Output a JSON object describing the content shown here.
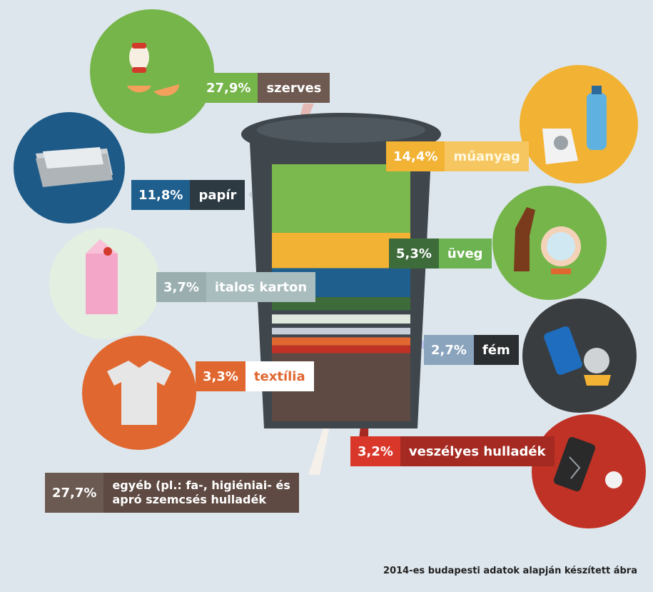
{
  "chart_data": {
    "type": "bar",
    "categories": [
      "szerves",
      "műanyag",
      "papír",
      "üveg",
      "italos karton",
      "fém",
      "textília",
      "veszélyes hulladék",
      "egyéb (pl.: fa-, higiéniai- és\napró szemcsés hulladék"
    ],
    "values": [
      27.9,
      14.4,
      11.8,
      5.3,
      3.7,
      2.7,
      3.3,
      3.2,
      27.7
    ],
    "value_labels": [
      "27,9%",
      "14,4%",
      "11,8%",
      "5,3%",
      "3,7%",
      "2,7%",
      "3,3%",
      "3,2%",
      "27,7%"
    ],
    "colors": [
      "#7bb84d",
      "#f2b233",
      "#1f5f8e",
      "#3d6b3a",
      "#dfe6dc",
      "#c8cfd8",
      "#e0672f",
      "#c03225",
      "#5e4a42"
    ],
    "note": "2014-es budapesti adatok alapján készített ábra"
  },
  "icons": [
    "apple-core-eggshell-icon",
    "newspaper-icon",
    "milk-carton-icon",
    "shirt-icon",
    "plastic-bag-bottle-icon",
    "glass-bottle-mirror-icon",
    "can-icon",
    "broken-phone-bulb-icon"
  ]
}
